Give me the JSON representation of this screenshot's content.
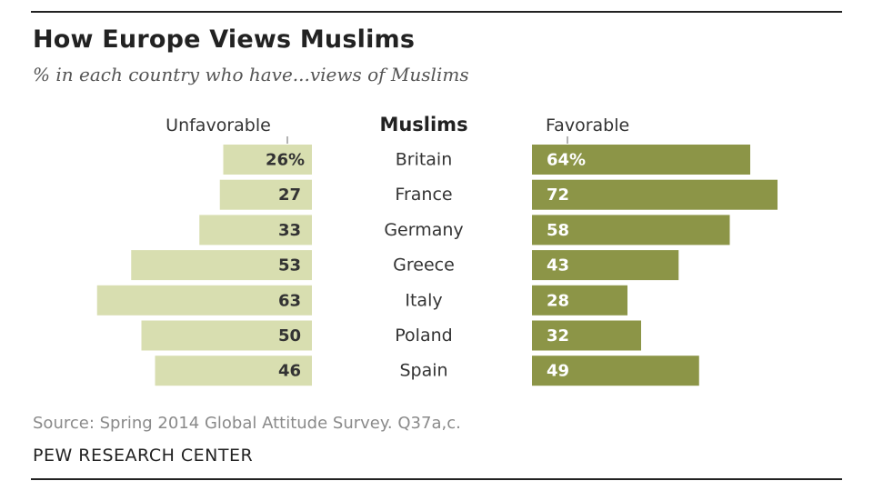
{
  "title": "How Europe Views Muslims",
  "subtitle": "% in each country who have...views of Muslims",
  "source": "Source: Spring 2014 Global Attitude Survey. Q37a,c.",
  "org": "PEW RESEARCH CENTER",
  "colors": {
    "unfavorable": "#d8deb0",
    "favorable": "#8c9547",
    "unfavorable_text": "#333333",
    "favorable_text": "#ffffff"
  },
  "chart_data": {
    "type": "bar",
    "layout": "diverging",
    "headers": {
      "unfavorable": "Unfavorable",
      "center": "Muslims",
      "favorable": "Favorable"
    },
    "categories": [
      "Britain",
      "France",
      "Germany",
      "Greece",
      "Italy",
      "Poland",
      "Spain"
    ],
    "series": [
      {
        "name": "Unfavorable",
        "values": [
          26,
          27,
          33,
          53,
          63,
          50,
          46
        ],
        "labels": [
          "26%",
          "27",
          "33",
          "53",
          "63",
          "50",
          "46"
        ]
      },
      {
        "name": "Favorable",
        "values": [
          64,
          72,
          58,
          43,
          28,
          32,
          49
        ],
        "labels": [
          "64%",
          "72",
          "58",
          "43",
          "28",
          "32",
          "49"
        ]
      }
    ]
  }
}
